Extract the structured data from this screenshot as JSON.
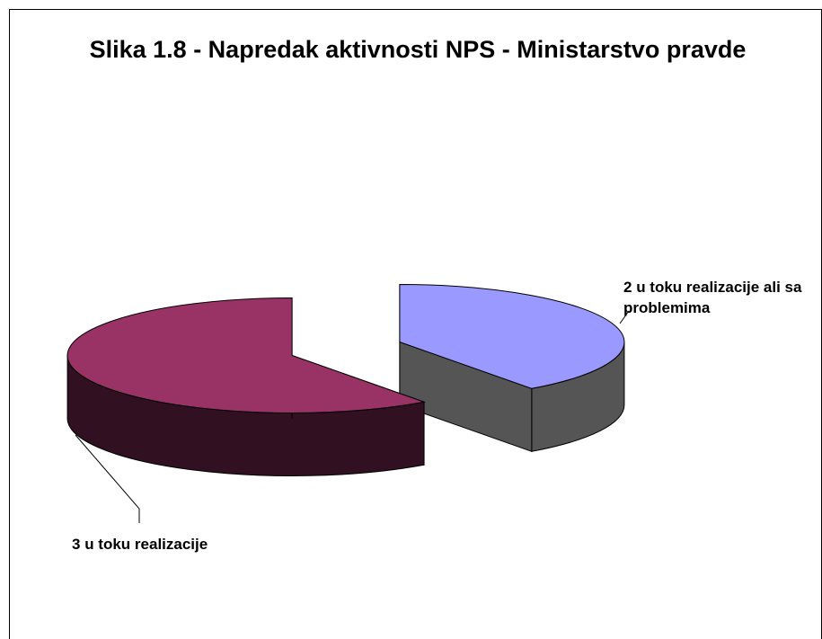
{
  "chart_data": {
    "type": "pie",
    "title": "Slika 1.8 - Napredak aktivnosti NPS - Ministarstvo pravde",
    "categories": [
      "u toku realizacije ali sa problemima",
      "u toku realizacije"
    ],
    "values": [
      2,
      3
    ],
    "colors": [
      "#9999ff",
      "#993366"
    ]
  }
}
